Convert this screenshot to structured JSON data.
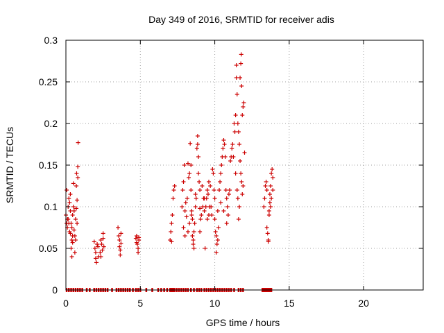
{
  "chart_data": {
    "type": "scatter",
    "title": "Day 349 of 2016, SRMTID for receiver adis",
    "xlabel": "GPS time / hours",
    "ylabel": "SRMTID / TECUs",
    "xlim": [
      0,
      24
    ],
    "ylim": [
      0,
      0.3
    ],
    "xticks": [
      0,
      5,
      10,
      15,
      20
    ],
    "yticks": [
      0,
      0.05,
      0.1,
      0.15,
      0.2,
      0.25,
      0.3
    ],
    "ytick_labels": [
      "0",
      "0.05",
      "0.1",
      "0.15",
      "0.2",
      "0.25",
      "0.3"
    ],
    "grid": true,
    "marker": "+",
    "color": "#cc0000",
    "series": [
      {
        "name": "SRMTID",
        "points": [
          [
            0.0,
            0.09
          ],
          [
            0.05,
            0.12
          ],
          [
            0.05,
            0.08
          ],
          [
            0.1,
            0.085
          ],
          [
            0.15,
            0.1
          ],
          [
            0.2,
            0.11
          ],
          [
            0.25,
            0.105
          ],
          [
            0.3,
            0.115
          ],
          [
            0.3,
            0.095
          ],
          [
            0.35,
            0.08
          ],
          [
            0.4,
            0.075
          ],
          [
            0.4,
            0.06
          ],
          [
            0.45,
            0.065
          ],
          [
            0.45,
            0.09
          ],
          [
            0.5,
            0.1
          ],
          [
            0.5,
            0.128
          ],
          [
            0.55,
            0.095
          ],
          [
            0.55,
            0.072
          ],
          [
            0.6,
            0.065
          ],
          [
            0.6,
            0.045
          ],
          [
            0.65,
            0.085
          ],
          [
            0.65,
            0.06
          ],
          [
            0.7,
            0.098
          ],
          [
            0.7,
            0.125
          ],
          [
            0.72,
            0.14
          ],
          [
            0.75,
            0.108
          ],
          [
            0.75,
            0.08
          ],
          [
            0.8,
            0.148
          ],
          [
            0.8,
            0.135
          ],
          [
            0.82,
            0.177
          ],
          [
            0.35,
            0.05
          ],
          [
            0.4,
            0.04
          ],
          [
            0.45,
            0.057
          ],
          [
            0.2,
            0.08
          ],
          [
            0.25,
            0.07
          ],
          [
            0.3,
            0.068
          ],
          [
            0.1,
            0.075
          ],
          [
            0.15,
            0.085
          ],
          [
            1.9,
            0.058
          ],
          [
            1.95,
            0.05
          ],
          [
            2.0,
            0.045
          ],
          [
            2.0,
            0.038
          ],
          [
            2.05,
            0.033
          ],
          [
            2.1,
            0.055
          ],
          [
            2.15,
            0.052
          ],
          [
            2.2,
            0.04
          ],
          [
            2.35,
            0.06
          ],
          [
            2.4,
            0.055
          ],
          [
            2.45,
            0.048
          ],
          [
            2.5,
            0.068
          ],
          [
            2.5,
            0.062
          ],
          [
            2.55,
            0.052
          ],
          [
            2.3,
            0.045
          ],
          [
            2.35,
            0.04
          ],
          [
            3.5,
            0.075
          ],
          [
            3.55,
            0.065
          ],
          [
            3.6,
            0.06
          ],
          [
            3.6,
            0.052
          ],
          [
            3.65,
            0.048
          ],
          [
            3.65,
            0.042
          ],
          [
            3.7,
            0.056
          ],
          [
            3.7,
            0.068
          ],
          [
            4.7,
            0.062
          ],
          [
            4.75,
            0.057
          ],
          [
            4.8,
            0.055
          ],
          [
            4.85,
            0.05
          ],
          [
            4.85,
            0.045
          ],
          [
            4.9,
            0.06
          ],
          [
            4.9,
            0.063
          ],
          [
            4.75,
            0.065
          ],
          [
            7.0,
            0.06
          ],
          [
            7.05,
            0.07
          ],
          [
            7.1,
            0.08
          ],
          [
            7.15,
            0.09
          ],
          [
            7.2,
            0.11
          ],
          [
            7.25,
            0.12
          ],
          [
            7.3,
            0.125
          ],
          [
            7.1,
            0.058
          ],
          [
            7.8,
            0.1
          ],
          [
            7.85,
            0.12
          ],
          [
            7.9,
            0.13
          ],
          [
            7.95,
            0.15
          ],
          [
            8.0,
            0.095
          ],
          [
            8.05,
            0.105
          ],
          [
            8.1,
            0.088
          ],
          [
            8.15,
            0.11
          ],
          [
            8.2,
            0.152
          ],
          [
            8.25,
            0.135
          ],
          [
            8.3,
            0.14
          ],
          [
            8.35,
            0.176
          ],
          [
            8.4,
            0.15
          ],
          [
            8.4,
            0.12
          ],
          [
            8.45,
            0.09
          ],
          [
            8.45,
            0.095
          ],
          [
            8.5,
            0.085
          ],
          [
            8.5,
            0.065
          ],
          [
            8.55,
            0.06
          ],
          [
            8.55,
            0.055
          ],
          [
            8.6,
            0.05
          ],
          [
            8.6,
            0.07
          ],
          [
            8.65,
            0.08
          ],
          [
            8.7,
            0.1
          ],
          [
            8.75,
            0.11
          ],
          [
            8.8,
            0.17
          ],
          [
            8.85,
            0.185
          ],
          [
            8.85,
            0.175
          ],
          [
            8.9,
            0.16
          ],
          [
            8.9,
            0.14
          ],
          [
            8.95,
            0.13
          ],
          [
            9.0,
            0.12
          ],
          [
            9.0,
            0.098
          ],
          [
            9.05,
            0.085
          ],
          [
            9.1,
            0.09
          ],
          [
            9.15,
            0.125
          ],
          [
            9.2,
            0.1
          ],
          [
            9.25,
            0.11
          ],
          [
            9.3,
            0.095
          ],
          [
            9.35,
            0.05
          ],
          [
            9.4,
            0.1
          ],
          [
            9.45,
            0.11
          ],
          [
            9.5,
            0.12
          ],
          [
            9.5,
            0.085
          ],
          [
            9.55,
            0.115
          ],
          [
            9.6,
            0.13
          ],
          [
            9.65,
            0.1
          ],
          [
            9.7,
            0.125
          ],
          [
            9.75,
            0.1
          ],
          [
            9.8,
            0.09
          ],
          [
            9.85,
            0.145
          ],
          [
            9.9,
            0.14
          ],
          [
            9.95,
            0.12
          ],
          [
            10.0,
            0.11
          ],
          [
            10.0,
            0.085
          ],
          [
            10.05,
            0.07
          ],
          [
            10.1,
            0.065
          ],
          [
            10.1,
            0.045
          ],
          [
            10.15,
            0.055
          ],
          [
            10.2,
            0.06
          ],
          [
            10.25,
            0.075
          ],
          [
            10.3,
            0.12
          ],
          [
            10.35,
            0.13
          ],
          [
            10.4,
            0.14
          ],
          [
            10.45,
            0.15
          ],
          [
            10.5,
            0.16
          ],
          [
            10.55,
            0.17
          ],
          [
            10.6,
            0.18
          ],
          [
            10.65,
            0.175
          ],
          [
            10.7,
            0.16
          ],
          [
            10.75,
            0.12
          ],
          [
            10.8,
            0.11
          ],
          [
            10.85,
            0.1
          ],
          [
            10.9,
            0.09
          ],
          [
            10.95,
            0.115
          ],
          [
            11.0,
            0.12
          ],
          [
            11.05,
            0.155
          ],
          [
            11.1,
            0.16
          ],
          [
            11.15,
            0.17
          ],
          [
            11.2,
            0.175
          ],
          [
            11.25,
            0.16
          ],
          [
            11.3,
            0.2
          ],
          [
            11.35,
            0.19
          ],
          [
            11.4,
            0.21
          ],
          [
            11.45,
            0.255
          ],
          [
            11.45,
            0.27
          ],
          [
            11.5,
            0.235
          ],
          [
            11.55,
            0.2
          ],
          [
            11.6,
            0.19
          ],
          [
            11.65,
            0.175
          ],
          [
            11.7,
            0.155
          ],
          [
            11.75,
            0.14
          ],
          [
            11.8,
            0.13
          ],
          [
            11.85,
            0.21
          ],
          [
            11.9,
            0.22
          ],
          [
            11.95,
            0.225
          ],
          [
            12.0,
            0.165
          ],
          [
            11.7,
            0.255
          ],
          [
            11.75,
            0.272
          ],
          [
            11.78,
            0.283
          ],
          [
            11.8,
            0.245
          ],
          [
            11.6,
            0.085
          ],
          [
            11.4,
            0.14
          ],
          [
            11.5,
            0.12
          ],
          [
            11.55,
            0.11
          ],
          [
            11.65,
            0.1
          ],
          [
            11.85,
            0.115
          ],
          [
            11.9,
            0.125
          ],
          [
            8.7,
            0.115
          ],
          [
            9.0,
            0.07
          ],
          [
            9.3,
            0.11
          ],
          [
            9.6,
            0.09
          ],
          [
            8.2,
            0.07
          ],
          [
            8.3,
            0.08
          ],
          [
            8.0,
            0.065
          ],
          [
            7.9,
            0.075
          ],
          [
            10.2,
            0.095
          ],
          [
            10.4,
            0.105
          ],
          [
            10.6,
            0.095
          ],
          [
            10.8,
            0.08
          ],
          [
            13.3,
            0.1
          ],
          [
            13.35,
            0.11
          ],
          [
            13.4,
            0.125
          ],
          [
            13.45,
            0.13
          ],
          [
            13.5,
            0.12
          ],
          [
            13.5,
            0.075
          ],
          [
            13.55,
            0.068
          ],
          [
            13.6,
            0.06
          ],
          [
            13.65,
            0.09
          ],
          [
            13.7,
            0.105
          ],
          [
            13.7,
            0.115
          ],
          [
            13.75,
            0.125
          ],
          [
            13.8,
            0.14
          ],
          [
            13.85,
            0.145
          ],
          [
            13.9,
            0.135
          ],
          [
            13.9,
            0.12
          ],
          [
            13.6,
            0.058
          ],
          [
            13.65,
            0.095
          ],
          [
            13.75,
            0.1
          ],
          [
            13.8,
            0.11
          ]
        ]
      },
      {
        "name": "SRMTID (zero)",
        "points": [
          [
            0.05,
            0
          ],
          [
            0.2,
            0
          ],
          [
            0.35,
            0
          ],
          [
            0.5,
            0
          ],
          [
            0.65,
            0
          ],
          [
            0.8,
            0
          ],
          [
            0.95,
            0
          ],
          [
            1.1,
            0
          ],
          [
            1.4,
            0
          ],
          [
            1.6,
            0
          ],
          [
            1.9,
            0
          ],
          [
            2.05,
            0
          ],
          [
            2.2,
            0
          ],
          [
            2.35,
            0
          ],
          [
            2.5,
            0
          ],
          [
            2.65,
            0
          ],
          [
            2.8,
            0
          ],
          [
            3.1,
            0
          ],
          [
            3.4,
            0
          ],
          [
            3.55,
            0
          ],
          [
            3.7,
            0
          ],
          [
            3.85,
            0
          ],
          [
            4.0,
            0
          ],
          [
            4.15,
            0
          ],
          [
            4.3,
            0
          ],
          [
            4.5,
            0
          ],
          [
            4.7,
            0
          ],
          [
            4.85,
            0
          ],
          [
            5.0,
            0
          ],
          [
            5.4,
            0
          ],
          [
            5.8,
            0
          ],
          [
            6.2,
            0
          ],
          [
            6.4,
            0
          ],
          [
            6.6,
            0
          ],
          [
            6.8,
            0
          ],
          [
            7.0,
            0
          ],
          [
            7.1,
            0
          ],
          [
            7.2,
            0
          ],
          [
            7.3,
            0
          ],
          [
            7.45,
            0
          ],
          [
            7.6,
            0
          ],
          [
            7.75,
            0
          ],
          [
            7.9,
            0
          ],
          [
            8.05,
            0
          ],
          [
            8.2,
            0
          ],
          [
            8.4,
            0
          ],
          [
            8.6,
            0
          ],
          [
            8.8,
            0
          ],
          [
            8.95,
            0
          ],
          [
            9.1,
            0
          ],
          [
            9.3,
            0
          ],
          [
            9.45,
            0
          ],
          [
            9.6,
            0
          ],
          [
            9.75,
            0
          ],
          [
            9.9,
            0
          ],
          [
            10.05,
            0
          ],
          [
            10.2,
            0
          ],
          [
            10.35,
            0
          ],
          [
            10.5,
            0
          ],
          [
            10.65,
            0
          ],
          [
            10.8,
            0
          ],
          [
            10.95,
            0
          ],
          [
            11.1,
            0
          ],
          [
            11.3,
            0
          ],
          [
            11.6,
            0
          ],
          [
            11.75,
            0
          ],
          [
            11.9,
            0
          ],
          [
            13.2,
            0
          ],
          [
            13.3,
            0
          ],
          [
            13.4,
            0
          ],
          [
            13.5,
            0
          ],
          [
            13.6,
            0
          ],
          [
            13.7,
            0
          ],
          [
            13.8,
            0
          ]
        ]
      }
    ]
  }
}
